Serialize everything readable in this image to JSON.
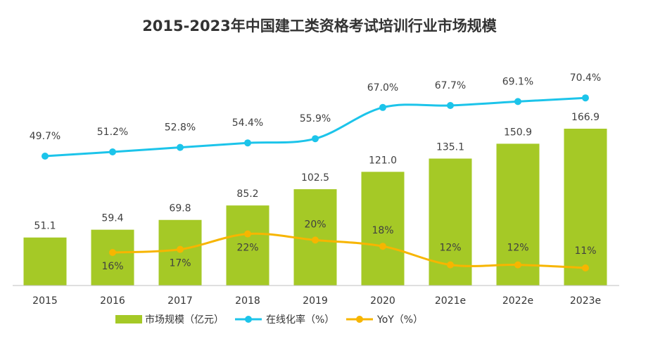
{
  "chart_data": {
    "type": "bar",
    "title": "2015-2023年中国建工类资格考试培训行业市场规模",
    "categories": [
      "2015",
      "2016",
      "2017",
      "2018",
      "2019",
      "2020",
      "2021e",
      "2022e",
      "2023e"
    ],
    "series": [
      {
        "name": "市场规模（亿元）",
        "type": "bar",
        "color": "#a5c926",
        "values": [
          51.1,
          59.4,
          69.8,
          85.2,
          102.5,
          121.0,
          135.1,
          150.9,
          166.9
        ],
        "labels": [
          "51.1",
          "59.4",
          "69.8",
          "85.2",
          "102.5",
          "121.0",
          "135.1",
          "150.9",
          "166.9"
        ]
      },
      {
        "name": "在线化率（%）",
        "type": "line",
        "color": "#1cc4ea",
        "values": [
          49.7,
          51.2,
          52.8,
          54.4,
          55.9,
          67.0,
          67.7,
          69.1,
          70.4
        ],
        "labels": [
          "49.7%",
          "51.2%",
          "52.8%",
          "54.4%",
          "55.9%",
          "67.0%",
          "67.7%",
          "69.1%",
          "70.4%"
        ]
      },
      {
        "name": "YoY（%）",
        "type": "line",
        "color": "#f7b500",
        "values": [
          null,
          16,
          17,
          22,
          20,
          18,
          12,
          12,
          11
        ],
        "labels": [
          null,
          "16%",
          "17%",
          "22%",
          "20%",
          "18%",
          "12%",
          "12%",
          "11%"
        ]
      }
    ],
    "legend_position": "bottom",
    "grid": false
  }
}
